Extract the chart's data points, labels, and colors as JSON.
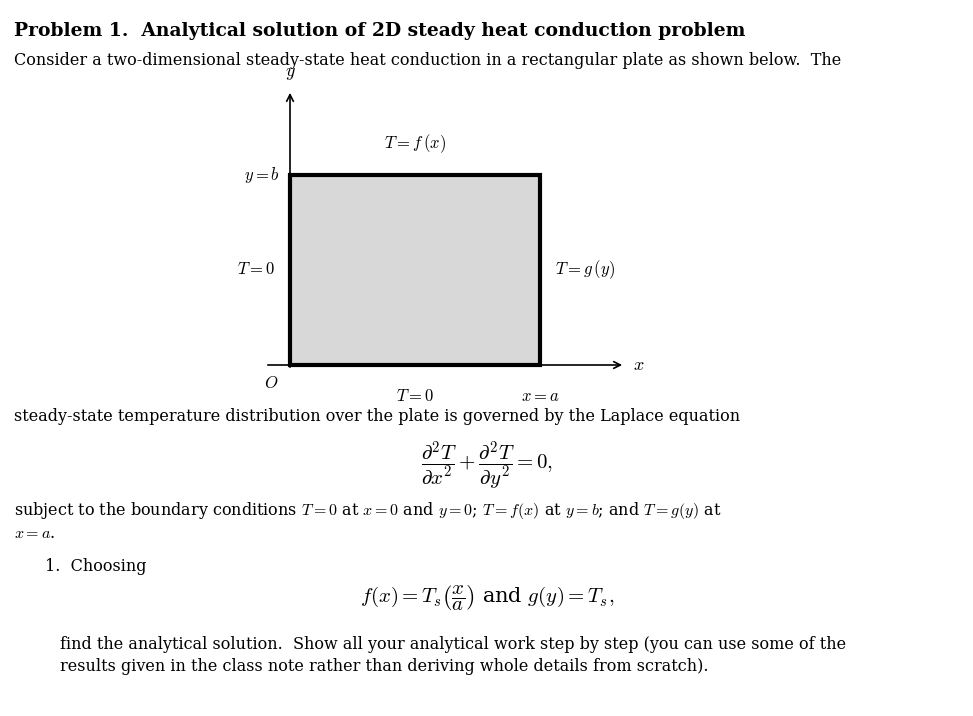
{
  "title": "Problem 1.  Analytical solution of 2D steady heat conduction problem",
  "line1": "Consider a two-dimensional steady-state heat conduction in a rectangular plate as shown below.  The",
  "line2": "steady-state temperature distribution over the plate is governed by the Laplace equation",
  "line3": "subject to the boundary conditions $T = 0$ at $x = 0$ and $y = 0$; $T = f(x)$ at $y = b$; and $T = g(y)$ at",
  "line4": "$x = a$.",
  "item1_label": "1.  Choosing",
  "item1_line": "find the analytical solution.  Show all your analytical work step by step (you can use some of the",
  "item1_line2": "results given in the class note rather than deriving whole details from scratch).",
  "bg_color": "#ffffff",
  "rect_fill": "#d8d8d8",
  "rect_edge": "#000000",
  "text_color": "#000000"
}
